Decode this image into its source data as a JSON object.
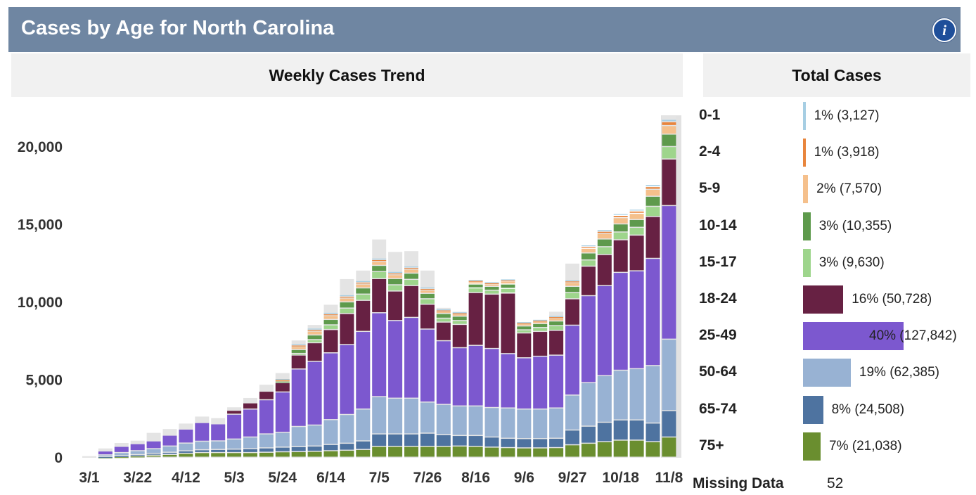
{
  "header": {
    "title": "Cases by Age for North Carolina",
    "info_icon": "info-icon"
  },
  "trend_panel": {
    "title": "Weekly Cases Trend"
  },
  "total_panel": {
    "title": "Total Cases",
    "groups": [
      {
        "label": "0-1",
        "text": "1% (3,127)",
        "percent": 1,
        "color": "#a6cee3"
      },
      {
        "label": "2-4",
        "text": "1% (3,918)",
        "percent": 1,
        "color": "#e8853d"
      },
      {
        "label": "5-9",
        "text": "2% (7,570)",
        "percent": 2,
        "color": "#f5c08c"
      },
      {
        "label": "10-14",
        "text": "3% (10,355)",
        "percent": 3,
        "color": "#5e9a4c"
      },
      {
        "label": "15-17",
        "text": "3% (9,630)",
        "percent": 3,
        "color": "#9ed58c"
      },
      {
        "label": "18-24",
        "text": "16% (50,728)",
        "percent": 16,
        "color": "#672143"
      },
      {
        "label": "25-49",
        "text": "40% (127,842)",
        "percent": 40,
        "color": "#7c58cf"
      },
      {
        "label": "50-64",
        "text": "19% (62,385)",
        "percent": 19,
        "color": "#98b2d3"
      },
      {
        "label": "65-74",
        "text": "8% (24,508)",
        "percent": 8,
        "color": "#4e73a0"
      },
      {
        "label": "75+",
        "text": "7% (21,038)",
        "percent": 7,
        "color": "#6a8e2f"
      }
    ],
    "missing_label": "Missing Data",
    "missing_value": "52"
  },
  "chart_data": {
    "type": "bar",
    "stacked": true,
    "ylim": [
      0,
      22000
    ],
    "yticks": [
      0,
      5000,
      10000,
      15000,
      20000
    ],
    "ytick_labels": [
      "0",
      "5,000",
      "10,000",
      "15,000",
      "20,000"
    ],
    "x": [
      "3/1",
      "3/8",
      "3/15",
      "3/22",
      "3/29",
      "4/5",
      "4/12",
      "4/19",
      "4/26",
      "5/3",
      "5/10",
      "5/17",
      "5/24",
      "5/31",
      "6/7",
      "6/14",
      "6/21",
      "6/28",
      "7/5",
      "7/12",
      "7/19",
      "7/26",
      "8/2",
      "8/9",
      "8/16",
      "8/23",
      "8/30",
      "9/6",
      "9/13",
      "9/20",
      "9/27",
      "10/4",
      "10/11",
      "10/18",
      "10/25",
      "11/1",
      "11/8"
    ],
    "xtick_labels": [
      "3/1",
      "3/22",
      "4/12",
      "5/3",
      "5/24",
      "6/14",
      "7/5",
      "7/26",
      "8/16",
      "9/6",
      "9/27",
      "10/18",
      "11/8"
    ],
    "series": [
      {
        "name": "75+",
        "color": "#6a8e2f",
        "values": [
          0,
          20,
          40,
          80,
          130,
          180,
          250,
          300,
          300,
          300,
          300,
          320,
          350,
          360,
          380,
          420,
          450,
          500,
          700,
          700,
          700,
          700,
          700,
          720,
          700,
          650,
          620,
          600,
          600,
          620,
          800,
          900,
          1000,
          1100,
          1100,
          1000,
          1300
        ]
      },
      {
        "name": "65-74",
        "color": "#4e73a0",
        "values": [
          0,
          30,
          60,
          90,
          120,
          140,
          160,
          180,
          200,
          220,
          250,
          280,
          300,
          320,
          340,
          400,
          450,
          550,
          800,
          800,
          800,
          850,
          750,
          680,
          700,
          650,
          600,
          600,
          600,
          600,
          950,
          1100,
          1250,
          1300,
          1300,
          1200,
          1700
        ]
      },
      {
        "name": "50-64",
        "color": "#98b2d3",
        "values": [
          0,
          100,
          200,
          250,
          300,
          400,
          500,
          550,
          550,
          650,
          750,
          900,
          950,
          1300,
          1350,
          1600,
          1850,
          2050,
          2400,
          2300,
          2300,
          2000,
          1950,
          1900,
          1900,
          1900,
          1950,
          1900,
          1900,
          1950,
          2250,
          2800,
          3000,
          3200,
          3300,
          3700,
          4600
        ]
      },
      {
        "name": "25-49",
        "color": "#7c58cf",
        "values": [
          0,
          250,
          400,
          450,
          500,
          700,
          900,
          1200,
          1100,
          1600,
          1800,
          2200,
          2600,
          3700,
          4100,
          4300,
          4500,
          5000,
          5400,
          5000,
          5200,
          4700,
          4100,
          3750,
          3900,
          3800,
          3500,
          3300,
          3400,
          3400,
          4500,
          5600,
          5800,
          6300,
          6300,
          6900,
          8600
        ]
      },
      {
        "name": "18-24",
        "color": "#672143",
        "values": [
          0,
          0,
          0,
          0,
          0,
          0,
          0,
          0,
          0,
          250,
          400,
          550,
          600,
          900,
          1200,
          1500,
          2000,
          2000,
          2200,
          1900,
          2050,
          1600,
          1200,
          1500,
          3400,
          3500,
          3900,
          1600,
          1600,
          1600,
          1700,
          1900,
          2000,
          2100,
          2300,
          2700,
          3000
        ]
      },
      {
        "name": "15-17",
        "color": "#9ed58c",
        "values": [
          0,
          0,
          0,
          0,
          0,
          0,
          0,
          0,
          0,
          0,
          0,
          0,
          0,
          100,
          200,
          300,
          350,
          400,
          450,
          400,
          400,
          350,
          250,
          250,
          300,
          250,
          300,
          200,
          250,
          300,
          400,
          400,
          500,
          500,
          500,
          650,
          800
        ]
      },
      {
        "name": "10-14",
        "color": "#5e9a4c",
        "values": [
          0,
          0,
          0,
          0,
          0,
          0,
          0,
          0,
          0,
          0,
          0,
          0,
          100,
          250,
          300,
          350,
          400,
          400,
          400,
          400,
          400,
          350,
          300,
          280,
          250,
          250,
          280,
          250,
          250,
          300,
          400,
          450,
          500,
          520,
          500,
          650,
          800
        ]
      },
      {
        "name": "5-9",
        "color": "#f5c08c",
        "values": [
          0,
          0,
          0,
          0,
          0,
          0,
          0,
          0,
          0,
          0,
          0,
          0,
          70,
          200,
          250,
          250,
          250,
          250,
          250,
          250,
          250,
          200,
          150,
          150,
          150,
          150,
          180,
          150,
          150,
          200,
          250,
          300,
          350,
          400,
          400,
          450,
          550
        ]
      },
      {
        "name": "2-4",
        "color": "#e8853d",
        "values": [
          0,
          0,
          0,
          0,
          0,
          0,
          0,
          0,
          0,
          0,
          0,
          0,
          50,
          90,
          100,
          110,
          110,
          120,
          120,
          110,
          110,
          110,
          80,
          70,
          80,
          80,
          80,
          70,
          70,
          80,
          100,
          120,
          140,
          150,
          150,
          170,
          250
        ]
      },
      {
        "name": "0-1",
        "color": "#a6cee3",
        "values": [
          0,
          0,
          0,
          0,
          0,
          0,
          0,
          0,
          0,
          0,
          0,
          0,
          50,
          80,
          90,
          100,
          100,
          100,
          100,
          100,
          100,
          100,
          70,
          60,
          70,
          70,
          70,
          60,
          60,
          70,
          90,
          100,
          120,
          120,
          120,
          140,
          150
        ]
      }
    ],
    "reported_totals": [
      100,
      600,
      950,
      1100,
      1600,
      1850,
      2200,
      2650,
      2550,
      3250,
      3850,
      4700,
      5450,
      7550,
      8550,
      9850,
      11500,
      12050,
      14050,
      13250,
      13300,
      12050,
      9650,
      9400,
      10850,
      11150,
      9700,
      8650,
      8800,
      9400,
      12500,
      13300,
      14650,
      15450,
      15500,
      17350,
      22000
    ]
  }
}
